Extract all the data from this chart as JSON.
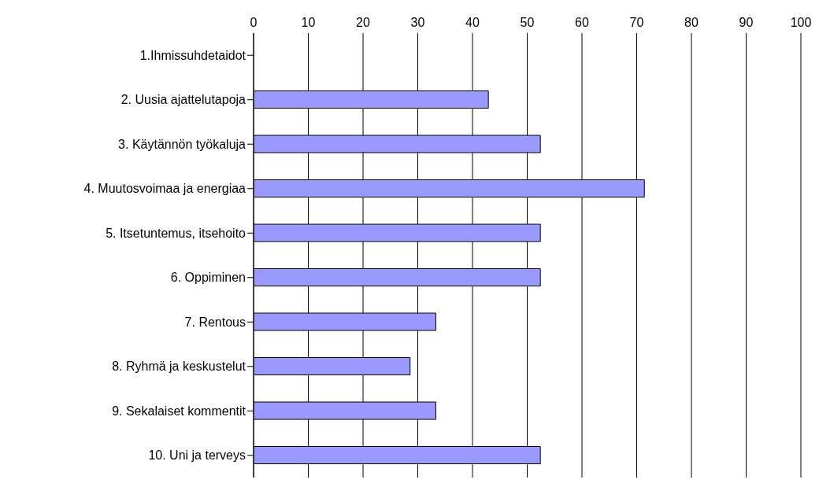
{
  "chart_data": {
    "type": "bar",
    "orientation": "horizontal",
    "categories": [
      "1.Ihmissuhdetaidot",
      "2. Uusia ajattelutapoja",
      "3. Käytännön työkaluja",
      "4. Muutosvoimaa ja energiaa",
      "5. Itsetuntemus, itsehoito",
      "6. Oppiminen",
      "7. Rentous",
      "8. Ryhmä ja keskustelut",
      "9. Sekalaiset kommentit",
      "10. Uni ja terveys"
    ],
    "values": [
      0,
      42.9,
      52.4,
      71.4,
      52.4,
      52.4,
      33.3,
      28.6,
      33.3,
      52.4
    ],
    "color": "#9999ff",
    "xlim": [
      0,
      100
    ],
    "xticks": [
      0,
      10,
      20,
      30,
      40,
      50,
      60,
      70,
      80,
      90,
      100
    ],
    "grid": "x"
  }
}
